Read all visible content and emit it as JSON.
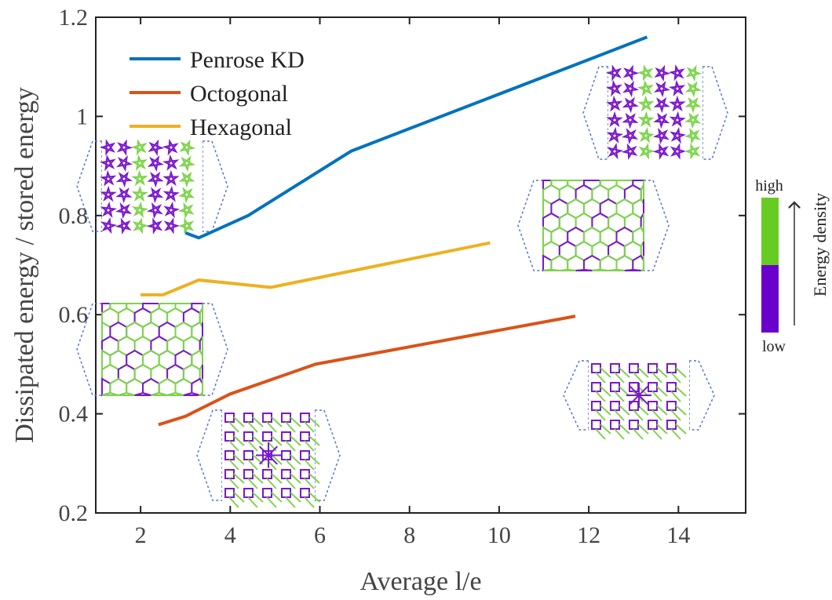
{
  "chart_data": {
    "type": "line",
    "xlabel": "Average l/e",
    "ylabel": "Dissipated energy / stored energy",
    "xlim": [
      1,
      15.5
    ],
    "ylim": [
      0.2,
      1.2
    ],
    "xticks": [
      "2",
      "4",
      "6",
      "8",
      "10",
      "12",
      "14"
    ],
    "yticks": [
      "0.2",
      "0.4",
      "0.6",
      "0.8",
      "1",
      "1.2"
    ],
    "grid": false,
    "legend_position": "top-left",
    "series": [
      {
        "name": "Penrose KD",
        "color": "#0072BD",
        "x": [
          3.0,
          3.3,
          4.4,
          6.7,
          13.3
        ],
        "y": [
          0.765,
          0.755,
          0.8,
          0.93,
          1.16
        ]
      },
      {
        "name": "Octogonal",
        "color": "#D95319",
        "x": [
          2.4,
          3.0,
          4.0,
          5.9,
          11.7
        ],
        "y": [
          0.378,
          0.395,
          0.44,
          0.5,
          0.597
        ]
      },
      {
        "name": "Hexagonal",
        "color": "#EDB120",
        "x": [
          2.0,
          2.5,
          3.3,
          4.9,
          9.8
        ],
        "y": [
          0.64,
          0.64,
          0.67,
          0.655,
          0.745
        ]
      }
    ],
    "colorbar": {
      "title": "Energy density",
      "high_label": "high",
      "low_label": "low",
      "high_color": "#66CC22",
      "low_color": "#6A00CC"
    }
  }
}
